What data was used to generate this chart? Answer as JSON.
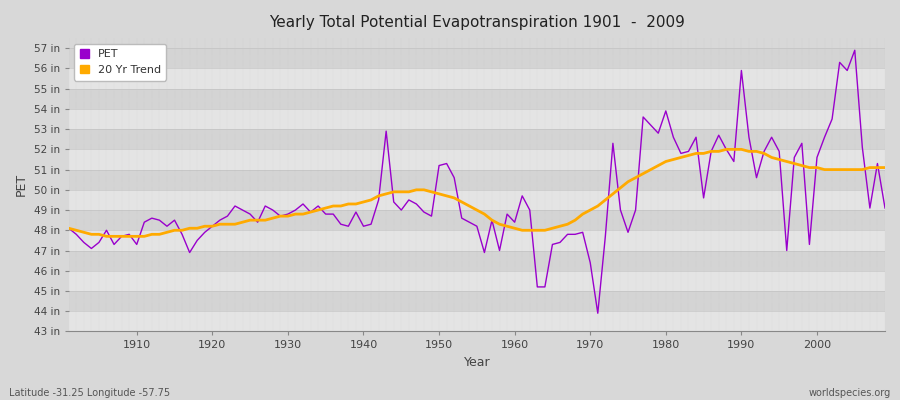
{
  "title": "Yearly Total Potential Evapotranspiration 1901  -  2009",
  "xlabel": "Year",
  "ylabel": "PET",
  "subtitle_left": "Latitude -31.25 Longitude -57.75",
  "subtitle_right": "worldspecies.org",
  "pet_color": "#9900cc",
  "trend_color": "#ffaa00",
  "background_color": "#e0e0e0",
  "band_color_light": "#e8e8e8",
  "band_color_dark": "#d8d8d8",
  "grid_color": "#cccccc",
  "ylim": [
    43,
    57.5
  ],
  "ytick_labels": [
    "43 in",
    "44 in",
    "45 in",
    "46 in",
    "47 in",
    "48 in",
    "49 in",
    "50 in",
    "51 in",
    "52 in",
    "53 in",
    "54 in",
    "55 in",
    "56 in",
    "57 in"
  ],
  "ytick_values": [
    43,
    44,
    45,
    46,
    47,
    48,
    49,
    50,
    51,
    52,
    53,
    54,
    55,
    56,
    57
  ],
  "years": [
    1901,
    1902,
    1903,
    1904,
    1905,
    1906,
    1907,
    1908,
    1909,
    1910,
    1911,
    1912,
    1913,
    1914,
    1915,
    1916,
    1917,
    1918,
    1919,
    1920,
    1921,
    1922,
    1923,
    1924,
    1925,
    1926,
    1927,
    1928,
    1929,
    1930,
    1931,
    1932,
    1933,
    1934,
    1935,
    1936,
    1937,
    1938,
    1939,
    1940,
    1941,
    1942,
    1943,
    1944,
    1945,
    1946,
    1947,
    1948,
    1949,
    1950,
    1951,
    1952,
    1953,
    1954,
    1955,
    1956,
    1957,
    1958,
    1959,
    1960,
    1961,
    1962,
    1963,
    1964,
    1965,
    1966,
    1967,
    1968,
    1969,
    1970,
    1971,
    1972,
    1973,
    1974,
    1975,
    1976,
    1977,
    1978,
    1979,
    1980,
    1981,
    1982,
    1983,
    1984,
    1985,
    1986,
    1987,
    1988,
    1989,
    1990,
    1991,
    1992,
    1993,
    1994,
    1995,
    1996,
    1997,
    1998,
    1999,
    2000,
    2001,
    2002,
    2003,
    2004,
    2005,
    2006,
    2007,
    2008,
    2009
  ],
  "pet_values": [
    48.1,
    47.8,
    47.4,
    47.1,
    47.4,
    48.0,
    47.3,
    47.7,
    47.8,
    47.3,
    48.4,
    48.6,
    48.5,
    48.2,
    48.5,
    47.8,
    46.9,
    47.5,
    47.9,
    48.2,
    48.5,
    48.7,
    49.2,
    49.0,
    48.8,
    48.4,
    49.2,
    49.0,
    48.7,
    48.8,
    49.0,
    49.3,
    48.9,
    49.2,
    48.8,
    48.8,
    48.3,
    48.2,
    48.9,
    48.2,
    48.3,
    49.5,
    52.9,
    49.4,
    49.0,
    49.5,
    49.3,
    48.9,
    48.7,
    51.2,
    51.3,
    50.6,
    48.6,
    48.4,
    48.2,
    46.9,
    48.5,
    47.0,
    48.8,
    48.4,
    49.7,
    49.0,
    45.2,
    45.2,
    47.3,
    47.4,
    47.8,
    47.8,
    47.9,
    46.4,
    43.9,
    47.7,
    52.3,
    49.0,
    47.9,
    49.0,
    53.6,
    53.2,
    52.8,
    53.9,
    52.6,
    51.8,
    51.9,
    52.6,
    49.6,
    51.9,
    52.7,
    52.0,
    51.4,
    55.9,
    52.6,
    50.6,
    51.9,
    52.6,
    51.9,
    47.0,
    51.6,
    52.3,
    47.3,
    51.6,
    52.6,
    53.5,
    56.3,
    55.9,
    56.9,
    52.1,
    49.1,
    51.3,
    49.1
  ],
  "trend_values": [
    48.1,
    48.0,
    47.9,
    47.8,
    47.8,
    47.7,
    47.7,
    47.7,
    47.7,
    47.7,
    47.7,
    47.8,
    47.8,
    47.9,
    48.0,
    48.0,
    48.1,
    48.1,
    48.2,
    48.2,
    48.3,
    48.3,
    48.3,
    48.4,
    48.5,
    48.5,
    48.5,
    48.6,
    48.7,
    48.7,
    48.8,
    48.8,
    48.9,
    49.0,
    49.1,
    49.2,
    49.2,
    49.3,
    49.3,
    49.4,
    49.5,
    49.7,
    49.8,
    49.9,
    49.9,
    49.9,
    50.0,
    50.0,
    49.9,
    49.8,
    49.7,
    49.6,
    49.4,
    49.2,
    49.0,
    48.8,
    48.5,
    48.3,
    48.2,
    48.1,
    48.0,
    48.0,
    48.0,
    48.0,
    48.1,
    48.2,
    48.3,
    48.5,
    48.8,
    49.0,
    49.2,
    49.5,
    49.8,
    50.1,
    50.4,
    50.6,
    50.8,
    51.0,
    51.2,
    51.4,
    51.5,
    51.6,
    51.7,
    51.8,
    51.8,
    51.9,
    51.9,
    52.0,
    52.0,
    52.0,
    51.9,
    51.9,
    51.8,
    51.6,
    51.5,
    51.4,
    51.3,
    51.2,
    51.1,
    51.1,
    51.0,
    51.0,
    51.0,
    51.0,
    51.0,
    51.0,
    51.1,
    51.1,
    51.1
  ]
}
